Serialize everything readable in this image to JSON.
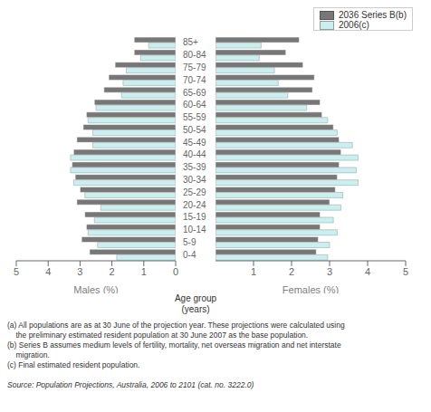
{
  "chart_data": [
    {
      "type": "bar",
      "orientation": "horizontal",
      "xlabel": "Males (%)",
      "ylabel": "Age group\n(years)",
      "categories": [
        "0-4",
        "5-9",
        "10-14",
        "15-19",
        "20-24",
        "25-29",
        "30-34",
        "35-39",
        "40-44",
        "45-49",
        "50-54",
        "55-59",
        "60-64",
        "65-69",
        "70-74",
        "75-79",
        "80-84",
        "85+"
      ],
      "series": [
        {
          "name": "2036 Series B(b)",
          "color": "#777777",
          "values": [
            2.7,
            2.95,
            2.8,
            2.85,
            3.1,
            3.0,
            3.15,
            3.25,
            3.2,
            3.1,
            2.9,
            2.8,
            2.55,
            2.25,
            2.1,
            1.9,
            1.3,
            1.3
          ]
        },
        {
          "name": "2006(c)",
          "color": "#c8f0f0",
          "values": [
            1.85,
            2.45,
            2.75,
            2.55,
            2.35,
            2.85,
            3.2,
            3.3,
            3.3,
            2.6,
            2.6,
            2.75,
            2.5,
            1.7,
            1.65,
            1.55,
            1.1,
            0.85
          ]
        }
      ],
      "xlim": [
        5,
        0
      ],
      "xticks": [
        0,
        1,
        2,
        3,
        4,
        5
      ],
      "grid": false,
      "annotations": [
        "(a) All populations are as at 30 June of the projection year. These projections were calculated using",
        "    the preliminary estimated resident population at 30 June 2007 as the base population.",
        "(b) Series B assumes medium levels of fertility, mortality, net overseas migration and net interstate",
        "    migration.",
        "(c) Final estimated resident population.",
        "Source: Population Projections, Australia, 2006 to 2101 (cat. no. 3222.0)"
      ]
    },
    {
      "type": "bar",
      "orientation": "horizontal",
      "xlabel": "Females (%)",
      "categories": [
        "0-4",
        "5-9",
        "10-14",
        "15-19",
        "20-24",
        "25-29",
        "30-34",
        "35-39",
        "40-44",
        "45-49",
        "50-54",
        "55-59",
        "60-64",
        "65-69",
        "70-74",
        "75-79",
        "80-84",
        "85+"
      ],
      "series": [
        {
          "name": "2036 Series B(b)",
          "color": "#777777",
          "values": [
            2.65,
            2.7,
            2.75,
            2.75,
            3.0,
            3.15,
            3.2,
            3.25,
            3.3,
            3.25,
            3.1,
            2.8,
            2.75,
            2.55,
            2.6,
            2.3,
            1.85,
            2.2
          ]
        },
        {
          "name": "2006(c)",
          "color": "#c8f0f0",
          "values": [
            2.95,
            3.0,
            3.2,
            3.1,
            3.3,
            3.35,
            3.75,
            3.7,
            3.75,
            3.6,
            3.2,
            2.95,
            2.4,
            1.9,
            1.65,
            1.55,
            1.15,
            1.2
          ]
        }
      ],
      "xlim": [
        0,
        5
      ],
      "xticks": [
        0,
        1,
        2,
        3,
        4,
        5
      ],
      "grid": false,
      "legend": "upper right",
      "tick_labels": "x"
    }
  ]
}
